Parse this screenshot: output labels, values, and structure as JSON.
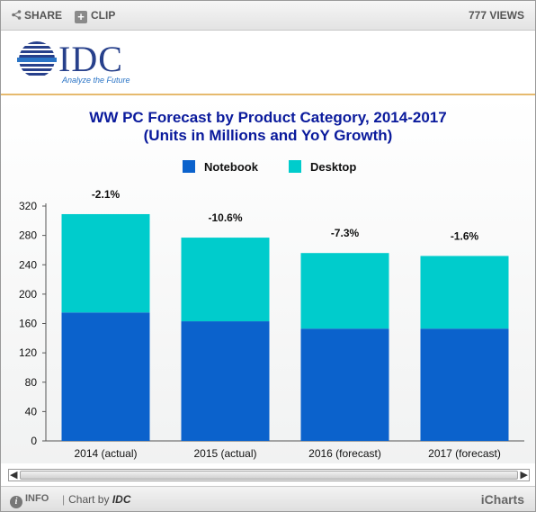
{
  "toolbar": {
    "share_label": "SHARE",
    "clip_label": "CLIP",
    "views_label": "777 VIEWS"
  },
  "logo": {
    "name": "IDC",
    "tagline": "Analyze the Future"
  },
  "chart_data": {
    "type": "bar",
    "stacked": true,
    "title": "WW PC Forecast by Product Category, 2014-2017",
    "subtitle": "(Units in Millions and YoY Growth)",
    "xlabel": "",
    "ylabel": "",
    "categories": [
      "2014 (actual)",
      "2015 (actual)",
      "2016 (forecast)",
      "2017 (forecast)"
    ],
    "series": [
      {
        "name": "Notebook",
        "color": "#0b62cc",
        "values": [
          175,
          163,
          153,
          153
        ]
      },
      {
        "name": "Desktop",
        "color": "#00cccc",
        "values": [
          134,
          114,
          103,
          99
        ]
      }
    ],
    "annotations": [
      "-2.1%",
      "-10.6%",
      "-7.3%",
      "-1.6%"
    ],
    "ylim": [
      0,
      320
    ],
    "yticks": [
      0,
      40,
      80,
      120,
      160,
      200,
      240,
      280,
      320
    ],
    "grid": false,
    "legend_position": "top-center"
  },
  "footer": {
    "info_label": "INFO",
    "chart_by_label": "Chart by",
    "source_label": "IDC",
    "brand_label": "iCharts"
  }
}
